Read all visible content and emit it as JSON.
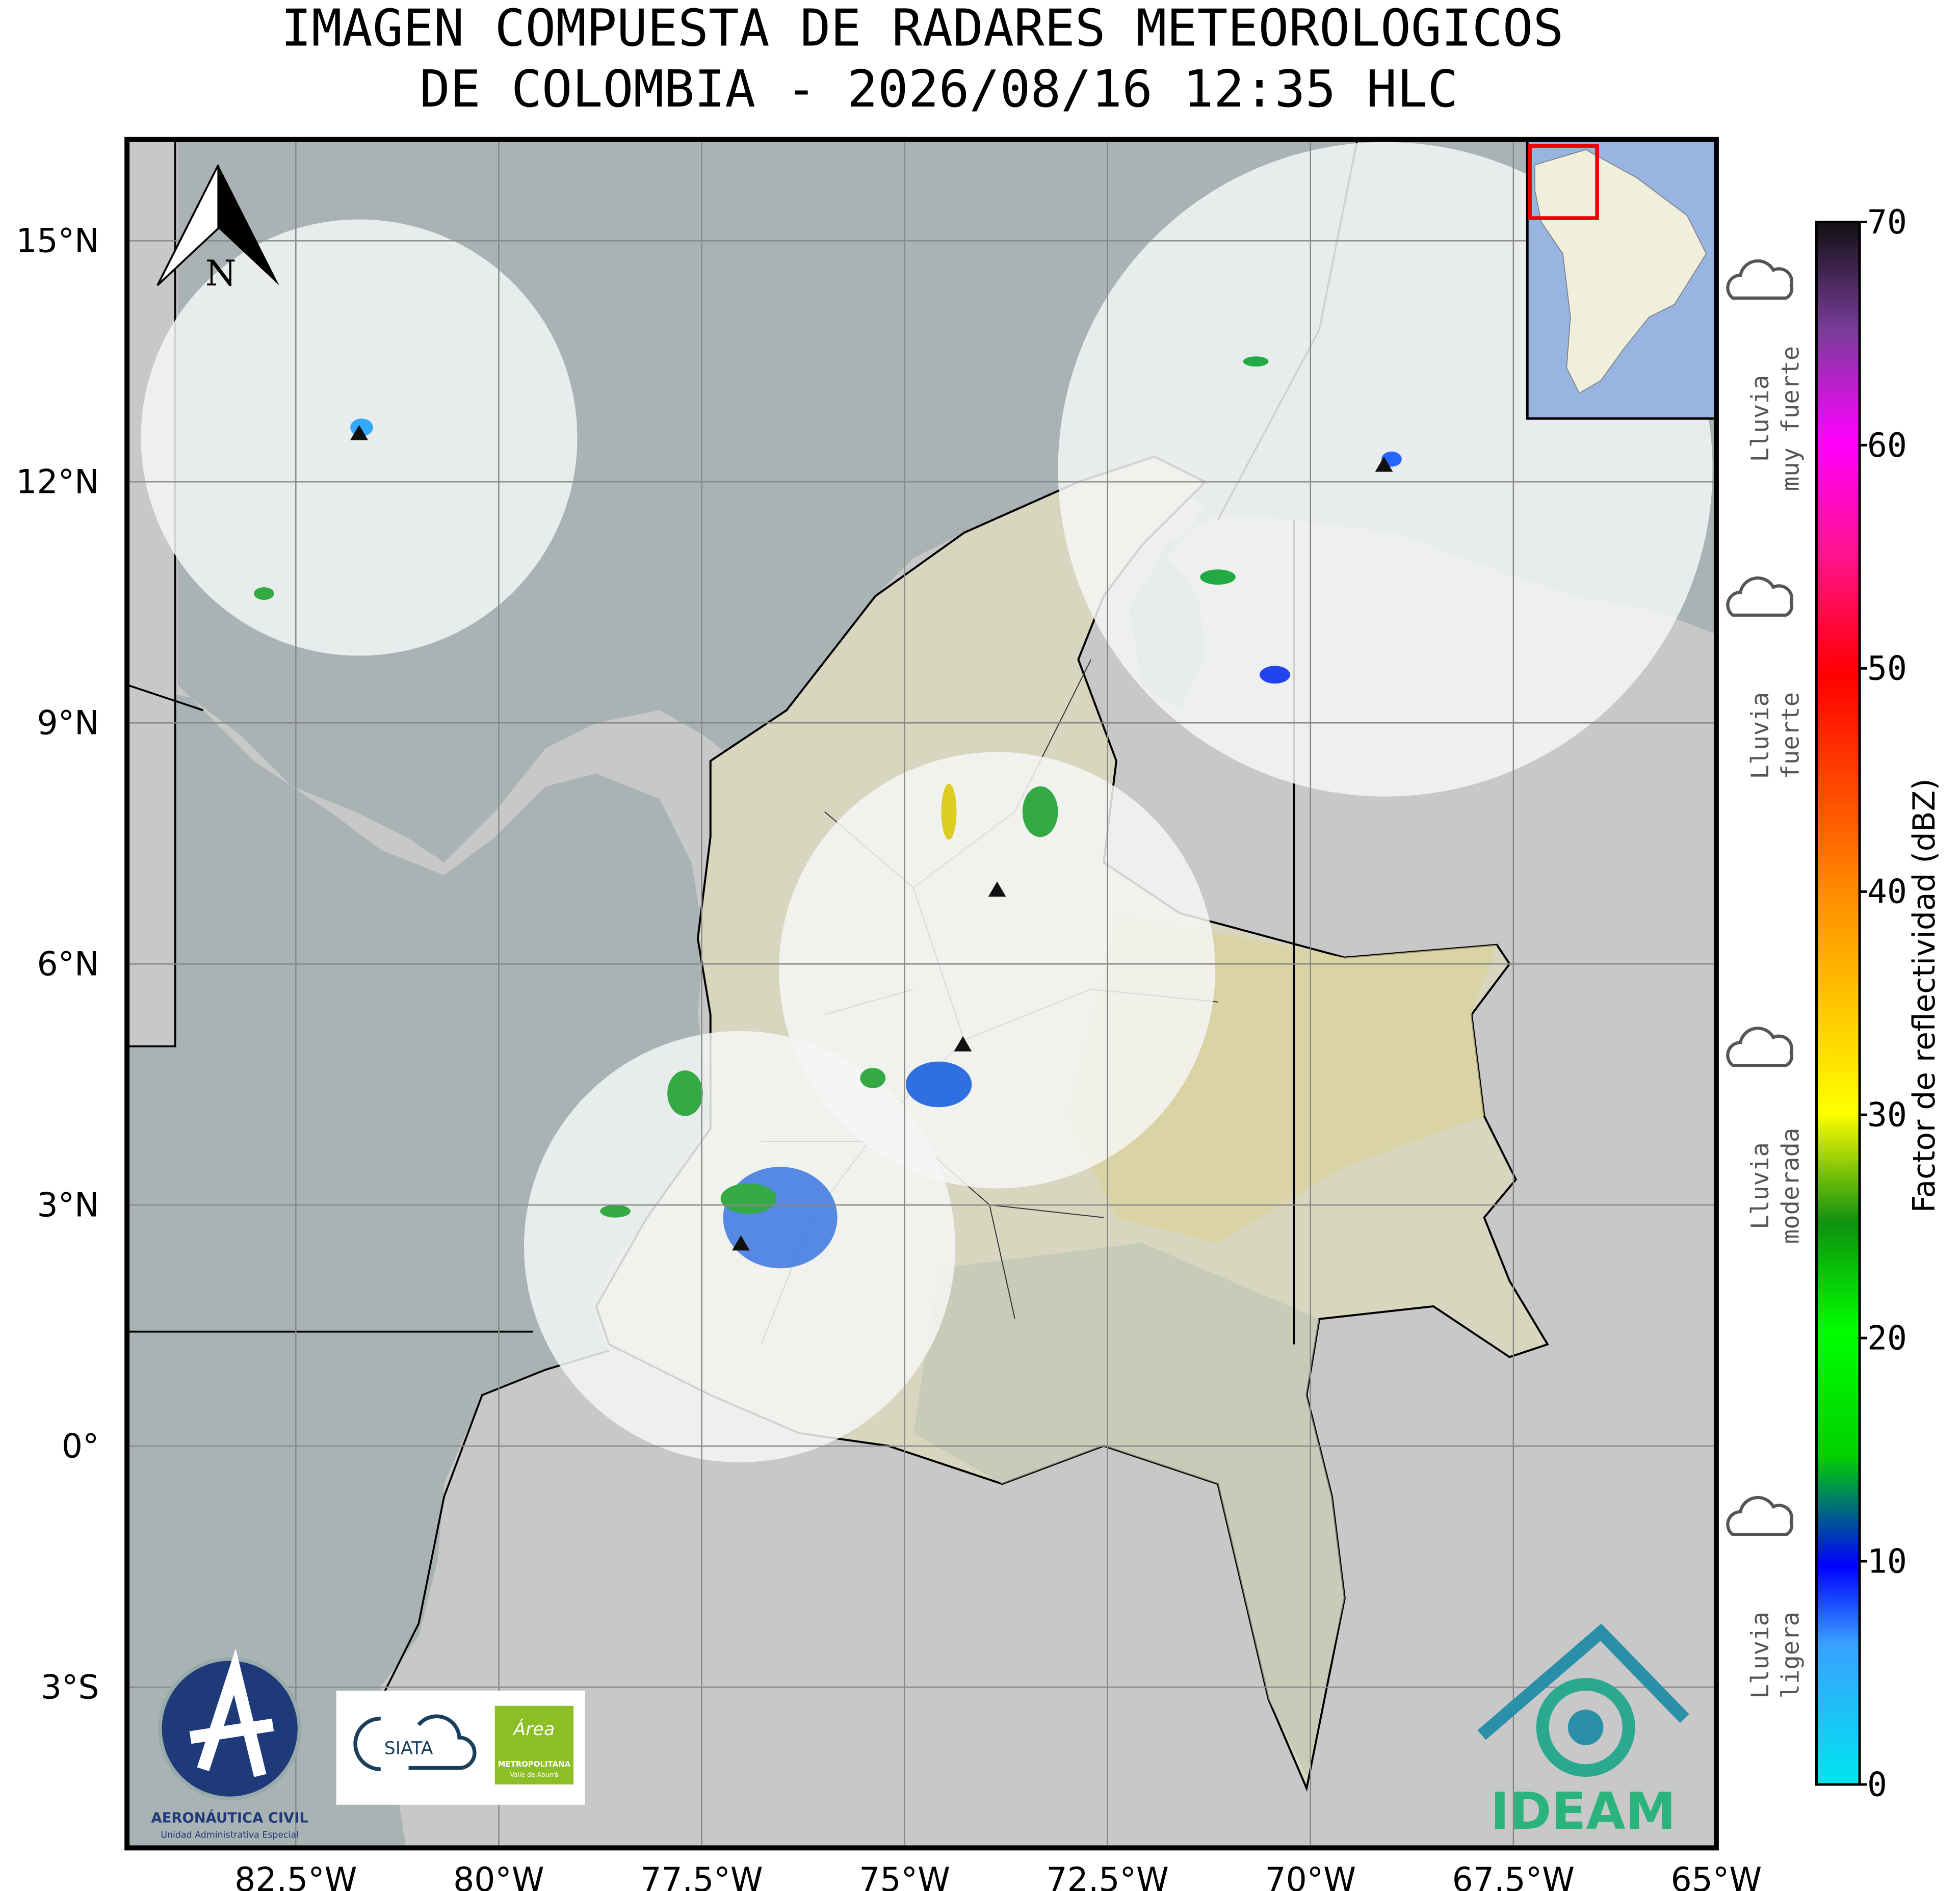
{
  "title": [
    "IMAGEN COMPUESTA DE RADARES METEOROLOGICOS",
    "DE COLOMBIA - 2026/08/16 12:35 HLC"
  ],
  "map": {
    "lonlim": [
      -84.58,
      -65
    ],
    "latlim": [
      -5,
      16.26
    ],
    "grid": true,
    "north_label": "N",
    "lon_ticks": [
      {
        "value": -82.5,
        "label": "82.5°W"
      },
      {
        "value": -80,
        "label": "80°W"
      },
      {
        "value": -77.5,
        "label": "77.5°W"
      },
      {
        "value": -75,
        "label": "75°W"
      },
      {
        "value": -72.5,
        "label": "72.5°W"
      },
      {
        "value": -70,
        "label": "70°W"
      },
      {
        "value": -67.5,
        "label": "67.5°W"
      },
      {
        "value": -65,
        "label": "65°W"
      }
    ],
    "lat_ticks": [
      {
        "value": 15,
        "label": "15°N"
      },
      {
        "value": 12,
        "label": "12°N"
      },
      {
        "value": 9,
        "label": "9°N"
      },
      {
        "value": 6,
        "label": "6°N"
      },
      {
        "value": 3,
        "label": "3°N"
      },
      {
        "value": 0,
        "label": "0°"
      },
      {
        "value": -3,
        "label": "3°S"
      }
    ]
  },
  "colorbar": {
    "label": "Factor de reflectividad (dBZ)",
    "lim": [
      0,
      70
    ],
    "ticks": [
      0,
      10,
      20,
      30,
      40,
      50,
      60,
      70
    ]
  },
  "rain_legend": [
    {
      "lines": [
        "Lluvia",
        "muy fuerte"
      ]
    },
    {
      "lines": [
        "Lluvia",
        "fuerte"
      ]
    },
    {
      "lines": [
        "Lluvia",
        "moderada"
      ]
    },
    {
      "lines": [
        "Lluvia",
        "ligera"
      ]
    }
  ],
  "logos": {
    "aerocivil": [
      "AERONÁUTICA CIVIL",
      "Unidad Administrativa Especial"
    ],
    "siata": "SIATA",
    "area": [
      "Área",
      "METROPOLITANA",
      "Valle de Aburrá"
    ],
    "ideam": "IDEAM"
  }
}
